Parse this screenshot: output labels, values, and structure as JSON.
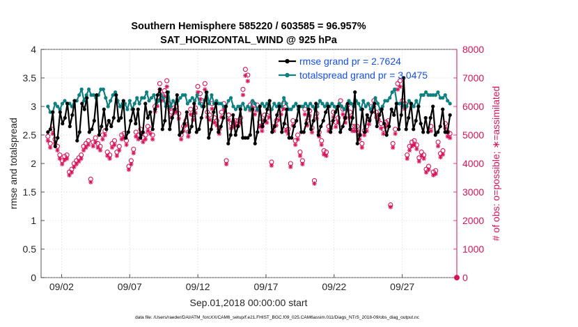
{
  "chart_data": {
    "type": "line",
    "title_line1": "Southern Hemisphere 585220 / 603585 = 96.957%",
    "title_line2": "SAT_HORIZONTAL_WIND @ 925 hPa",
    "xlabel": "Sep.01,2018 00:00:00 start",
    "ylabel_left": "rmse and totalspread",
    "ylabel_right": "# of obs: o=possible; ∗=assimilated",
    "footnote": "data file: /Users/raeder/DAI/ATM_forcXX/CAM6_setup/f.e21.FHIST_BGC.f09_025.CAM6assim.011/Diags_NTrS_2018-09/obs_diag_output.nc",
    "xlim": [
      0.5,
      31.0
    ],
    "ylim_left": [
      0,
      4
    ],
    "ylim_right": [
      0,
      8000
    ],
    "x_ticks": [
      {
        "value": 2,
        "label": "09/02"
      },
      {
        "value": 7,
        "label": "09/07"
      },
      {
        "value": 12,
        "label": "09/12"
      },
      {
        "value": 17,
        "label": "09/17"
      },
      {
        "value": 22,
        "label": "09/22"
      },
      {
        "value": 27,
        "label": "09/27"
      }
    ],
    "y_ticks_left": [
      "0",
      "0.5",
      "1",
      "1.5",
      "2",
      "2.5",
      "3",
      "3.5",
      "4"
    ],
    "y_ticks_right": [
      "0",
      "1000",
      "2000",
      "3000",
      "4000",
      "5000",
      "6000",
      "7000",
      "8000"
    ],
    "colors": {
      "rmse": "#000000",
      "totalspread": "#0f7f7f",
      "obs": "#d6135a",
      "legend_text": "#1450e6",
      "axis": "#262626"
    },
    "series": [
      {
        "name": "rmse grand pr = 2.7624",
        "values": [
          2.55,
          2.6,
          2.9,
          2.3,
          2.45,
          2.9,
          2.7,
          2.8,
          3.05,
          2.65,
          2.85,
          3.1,
          2.4,
          2.55,
          3.05,
          2.95,
          3.15,
          2.55,
          2.6,
          2.75,
          3.2,
          2.5,
          2.65,
          2.95,
          2.6,
          2.75,
          2.65,
          2.8,
          3.2,
          2.75,
          2.8,
          3.1,
          2.45,
          2.55,
          2.75,
          2.95,
          2.7,
          2.95,
          2.45,
          2.55,
          3.05,
          2.8,
          2.9,
          2.6,
          2.95,
          3.2,
          3.3,
          2.6,
          2.75,
          3.25,
          2.6,
          2.8,
          2.95,
          3.2,
          2.5,
          2.55,
          2.7,
          2.9,
          2.55,
          2.65,
          3.05,
          2.55,
          2.6,
          2.8,
          3.0,
          3.25,
          2.45,
          2.6,
          2.9,
          3.05,
          2.55,
          2.65,
          2.8,
          3.0,
          2.35,
          2.5,
          2.85,
          2.5,
          2.65,
          2.95,
          2.45,
          2.45,
          2.45,
          2.5,
          2.95,
          2.35,
          2.55,
          3.0,
          2.65,
          2.75,
          2.95,
          3.1,
          2.55,
          2.65,
          2.85,
          3.0,
          2.55,
          2.7,
          2.95,
          2.45,
          2.45,
          2.65,
          2.75,
          3.0,
          2.55,
          2.55,
          2.7,
          2.95,
          2.6,
          2.75,
          3.05,
          2.5,
          2.65,
          2.75,
          2.9,
          3.0,
          2.55,
          2.75,
          2.9,
          3.0,
          2.55,
          2.65,
          2.8,
          3.05,
          2.6,
          2.8,
          3.25,
          2.35,
          2.5,
          2.95,
          2.55,
          2.85,
          2.75,
          2.9,
          3.05,
          2.65,
          2.85,
          2.95,
          2.7,
          2.5,
          2.65,
          2.95,
          2.85,
          3.05,
          2.6,
          2.85,
          3.5,
          2.6,
          2.8,
          3.05,
          2.6,
          2.75,
          3.0,
          2.7,
          2.55,
          2.8,
          2.55,
          2.8,
          3.0,
          2.5,
          2.55,
          2.65,
          2.95,
          2.55,
          2.55,
          2.85
        ]
      },
      {
        "name": "totalspread grand pr = 3.0475",
        "values": [
          3.0,
          2.9,
          2.9,
          3.05,
          3.0,
          2.95,
          3.05,
          3.1,
          3.05,
          3.05,
          3.0,
          3.1,
          3.1,
          3.2,
          3.3,
          3.1,
          3.2,
          3.3,
          3.2,
          3.2,
          3.15,
          3.2,
          3.3,
          3.3,
          3.15,
          3.0,
          3.1,
          3.2,
          3.25,
          3.1,
          3.0,
          3.05,
          3.05,
          2.95,
          3.1,
          2.95,
          3.05,
          3.15,
          3.05,
          3.15,
          3.15,
          3.25,
          3.1,
          3.15,
          3.2,
          3.05,
          3.1,
          3.2,
          3.15,
          3.0,
          3.25,
          3.0,
          3.1,
          3.05,
          3.1,
          3.15,
          3.2,
          3.2,
          3.05,
          3.1,
          3.15,
          3.1,
          3.2,
          3.05,
          3.0,
          3.1,
          3.25,
          3.05,
          3.2,
          3.05,
          3.1,
          3.05,
          3.05,
          3.0,
          3.0,
          3.1,
          3.15,
          3.0,
          2.95,
          3.0,
          3.0,
          3.05,
          2.95,
          3.0,
          2.95,
          3.1,
          3.05,
          2.95,
          3.0,
          3.05,
          3.0,
          3.05,
          3.0,
          2.95,
          3.05,
          3.0,
          3.05,
          3.0,
          3.15,
          3.05,
          2.95,
          2.95,
          3.0,
          3.05,
          2.95,
          3.0,
          3.0,
          3.05,
          3.0,
          3.05,
          3.0,
          2.95,
          3.0,
          3.1,
          3.05,
          3.0,
          3.05,
          3.0,
          3.05,
          3.0,
          2.95,
          3.05,
          3.0,
          2.95,
          3.0,
          3.1,
          3.05,
          3.0,
          3.1,
          3.05,
          2.95,
          3.1,
          3.0,
          3.05,
          2.95,
          3.0,
          3.15,
          3.05,
          2.95,
          3.0,
          3.1,
          3.1,
          3.15,
          3.25,
          3.3,
          3.05,
          3.05,
          3.05,
          3.0,
          3.0,
          3.1,
          3.05,
          3.0,
          3.1,
          3.0,
          3.2,
          3.2,
          3.25,
          3.2,
          3.2,
          3.2,
          3.2,
          3.25,
          3.15,
          3.15,
          3.2,
          3.1,
          3.05
        ]
      }
    ],
    "obs_possible": [
      4950,
      4700,
      5200,
      4850,
      4600,
      4300,
      4100,
      4250,
      4300,
      3700,
      3800,
      4000,
      4100,
      4200,
      4300,
      4600,
      4700,
      4800,
      3450,
      4750,
      4900,
      4700,
      4600,
      5000,
      5150,
      4400,
      4300,
      4700,
      4800,
      4400,
      4600,
      5000,
      5050,
      4800,
      3900,
      4100,
      4500,
      5100,
      5000,
      5200,
      4900,
      5000,
      5300,
      5200,
      5000,
      6000,
      6200,
      6800,
      6400,
      6550,
      6900,
      6100,
      5800,
      5950,
      6000,
      5750,
      5000,
      5300,
      5500,
      5100,
      5900,
      5700,
      5950,
      6700,
      6450,
      6200,
      6800,
      5800,
      5700,
      6100,
      5600,
      5500,
      5200,
      5800,
      6100,
      4100,
      5700,
      5400,
      5450,
      5500,
      5500,
      5600,
      6600,
      7300,
      7100,
      6050,
      6150,
      5900,
      6050,
      5450,
      5300,
      5700,
      5600,
      5800,
      4050,
      5300,
      5500,
      5700,
      5900,
      6100,
      5300,
      5200,
      4000,
      5500,
      4800,
      5000,
      4400,
      4100,
      5900,
      5500,
      5850,
      5250,
      3400,
      5750,
      5100,
      4800,
      4450,
      4400,
      5300,
      5400,
      5800,
      5450,
      5600,
      6200,
      5900,
      5600,
      6050,
      5800,
      5300,
      5300,
      5300,
      5000,
      4700,
      5150,
      5300,
      5550,
      6000,
      6200,
      5800,
      5700,
      5400,
      5200,
      5450,
      5500,
      2550,
      4700,
      5200,
      6800,
      6900,
      6200,
      6100,
      4300,
      4600,
      4750,
      4800,
      4650,
      4200,
      4400,
      4300,
      3800,
      3900,
      5300,
      3700,
      3750,
      4750,
      4350,
      4450,
      5400,
      5100,
      5050
    ]
  }
}
